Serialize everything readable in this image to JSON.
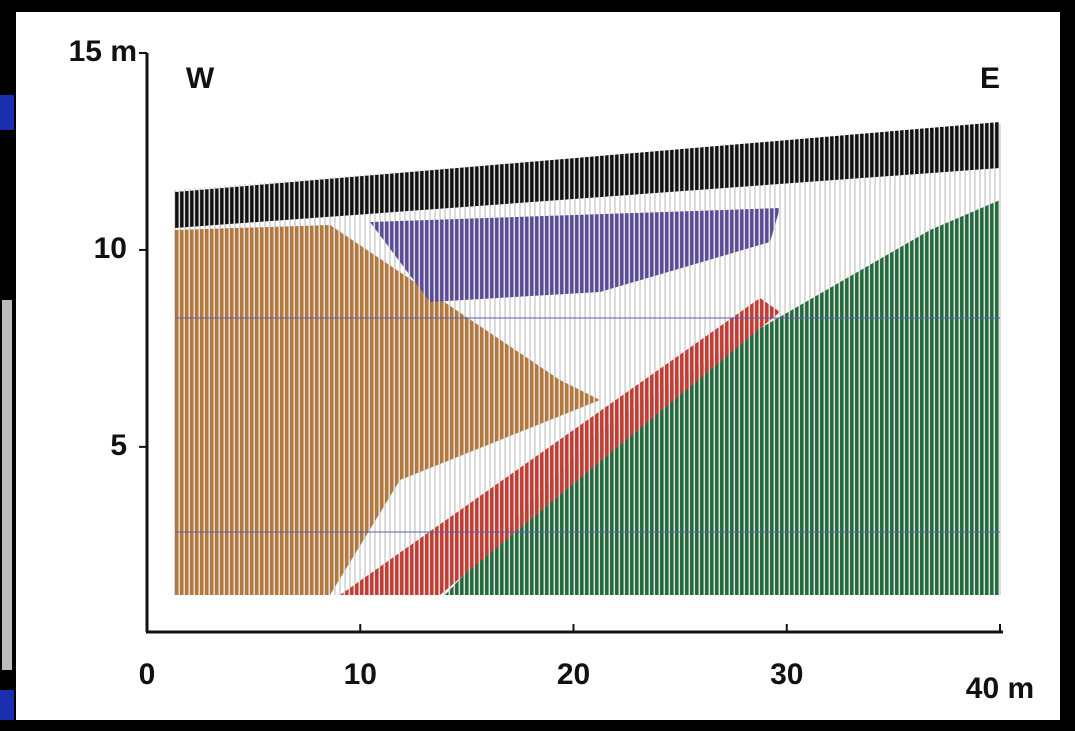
{
  "chart_data": {
    "type": "wiggle",
    "xlim": [
      0,
      40
    ],
    "xticks": [
      0,
      10,
      20,
      30,
      {
        "value": 40,
        "label": "40 m"
      }
    ],
    "ylim": [
      0.3,
      15
    ],
    "yticks": [
      5,
      10,
      {
        "value": 15,
        "label": "15 m"
      }
    ],
    "annotations": [
      "W",
      "E"
    ],
    "colors": [
      "#111111",
      "#5b4a9a",
      "#b87838",
      "#c83a30",
      "#1f6b3a"
    ]
  }
}
